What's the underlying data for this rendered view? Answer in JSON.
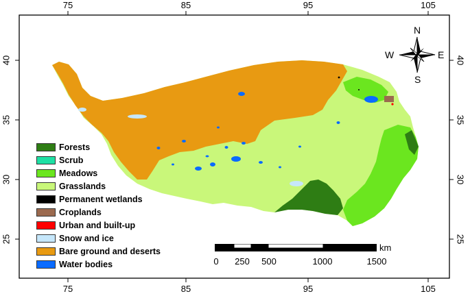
{
  "axes": {
    "top_ticks": [
      "75",
      "85",
      "95",
      "105"
    ],
    "bottom_ticks": [
      "75",
      "85",
      "95",
      "105"
    ],
    "left_ticks": [
      "40",
      "35",
      "30",
      "25"
    ],
    "right_ticks": [
      "40",
      "35",
      "30",
      "25"
    ]
  },
  "compass": {
    "north": "N",
    "south": "S",
    "east": "E",
    "west": "W"
  },
  "legend": [
    {
      "label": "Forests",
      "color": "#2e7d14"
    },
    {
      "label": "Scrub",
      "color": "#1ee0a4"
    },
    {
      "label": "Meadows",
      "color": "#6be61f"
    },
    {
      "label": "Grasslands",
      "color": "#c9f77a"
    },
    {
      "label": "Permanent wetlands",
      "color": "#000000"
    },
    {
      "label": "Croplands",
      "color": "#9b6a4f"
    },
    {
      "label": "Urban and built-up",
      "color": "#ff0000"
    },
    {
      "label": "Snow and ice",
      "color": "#c6e7fb"
    },
    {
      "label": "Bare ground and deserts",
      "color": "#e89a12"
    },
    {
      "label": "Water bodies",
      "color": "#0a6bff"
    }
  ],
  "scalebar": {
    "unit": "km",
    "labels": [
      "0",
      "250",
      "500",
      "1000",
      "1500"
    ]
  }
}
